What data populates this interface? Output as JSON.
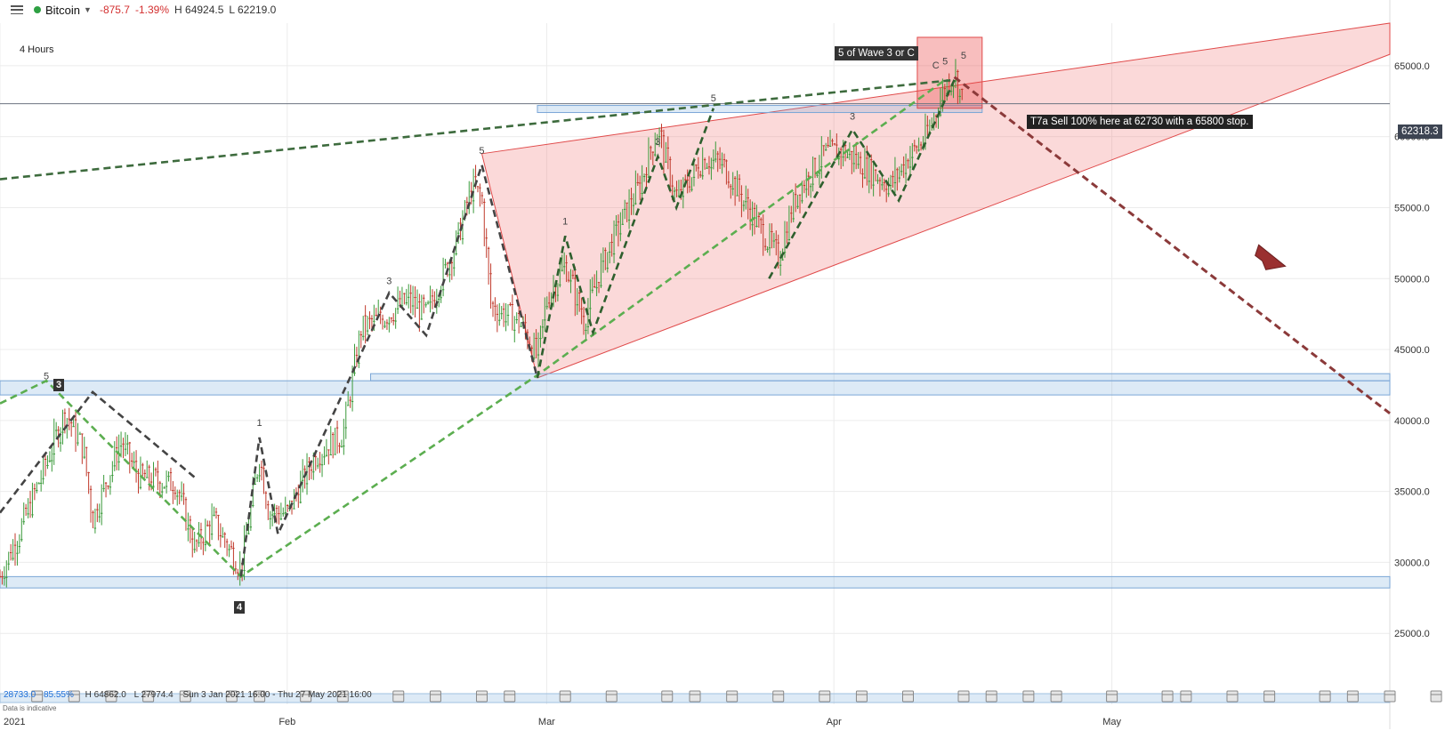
{
  "header": {
    "symbol": "Bitcoin",
    "status_color": "#2ea043",
    "change": "-875.7",
    "change_pct": "-1.39%",
    "high": "H 64924.5",
    "low": "L 62219.0",
    "change_color": "#d32f2f"
  },
  "timeframe_label": "4 Hours",
  "current_price_label": "62318.3",
  "annotations": {
    "wave_box": "5 of Wave 3 or C",
    "trade_callout": "T7a Sell 100% here at 62730 with a 65800 stop.",
    "box_3": "3",
    "box_4": "4"
  },
  "footer": {
    "last_value": "28733.0",
    "pct": "85.55%",
    "range_high": "H 64862.0",
    "range_low": "L 27974.4",
    "date_range": "Sun 3 Jan 2021 16:00 - Thu 27 May 2021 16:00",
    "note": "Data is indicative"
  },
  "chart_data": {
    "type": "candlestick",
    "title": "",
    "ylim": [
      20000,
      68000
    ],
    "xlim": [
      "2021-01-01",
      "2021-05-31"
    ],
    "y_tick_labels": [
      "65000.0",
      "60000.0",
      "55000.0",
      "50000.0",
      "45000.0",
      "40000.0",
      "35000.0",
      "30000.0",
      "25000.0"
    ],
    "y_ticks": [
      65000,
      60000,
      55000,
      50000,
      45000,
      40000,
      35000,
      30000,
      25000
    ],
    "x_tick_labels": [
      "2021",
      "Feb",
      "Mar",
      "Apr",
      "May"
    ],
    "x_ticks": [
      "2021-01-01",
      "2021-02-01",
      "2021-03-01",
      "2021-04-01",
      "2021-05-01"
    ],
    "grid": true,
    "price_path": [
      [
        "2021-01-01",
        29000
      ],
      [
        "2021-01-03",
        32000
      ],
      [
        "2021-01-06",
        37000
      ],
      [
        "2021-01-08",
        40500
      ],
      [
        "2021-01-10",
        38000
      ],
      [
        "2021-01-11",
        33000
      ],
      [
        "2021-01-14",
        38500
      ],
      [
        "2021-01-16",
        36000
      ],
      [
        "2021-01-20",
        35500
      ],
      [
        "2021-01-22",
        31000
      ],
      [
        "2021-01-24",
        33000
      ],
      [
        "2021-01-27",
        29500
      ],
      [
        "2021-01-29",
        37500
      ],
      [
        "2021-01-30",
        33500
      ],
      [
        "2021-02-01",
        33500
      ],
      [
        "2021-02-04",
        37500
      ],
      [
        "2021-02-07",
        39000
      ],
      [
        "2021-02-09",
        46500
      ],
      [
        "2021-02-12",
        47500
      ],
      [
        "2021-02-14",
        48500
      ],
      [
        "2021-02-16",
        47500
      ],
      [
        "2021-02-19",
        52000
      ],
      [
        "2021-02-21",
        56500
      ],
      [
        "2021-02-22",
        55500
      ],
      [
        "2021-02-23",
        48000
      ],
      [
        "2021-02-26",
        47000
      ],
      [
        "2021-02-28",
        44500
      ],
      [
        "2021-03-01",
        48500
      ],
      [
        "2021-03-03",
        51000
      ],
      [
        "2021-03-05",
        47000
      ],
      [
        "2021-03-07",
        51000
      ],
      [
        "2021-03-09",
        54000
      ],
      [
        "2021-03-11",
        56500
      ],
      [
        "2021-03-13",
        60500
      ],
      [
        "2021-03-15",
        55500
      ],
      [
        "2021-03-18",
        58500
      ],
      [
        "2021-03-20",
        58000
      ],
      [
        "2021-03-24",
        53500
      ],
      [
        "2021-03-26",
        51500
      ],
      [
        "2021-03-28",
        56000
      ],
      [
        "2021-03-31",
        58800
      ],
      [
        "2021-04-02",
        59000
      ],
      [
        "2021-04-05",
        57500
      ],
      [
        "2021-04-07",
        56500
      ],
      [
        "2021-04-09",
        58500
      ],
      [
        "2021-04-11",
        60000
      ],
      [
        "2021-04-13",
        63500
      ],
      [
        "2021-04-14",
        64500
      ],
      [
        "2021-04-15",
        62300
      ]
    ],
    "lines": [
      {
        "style": "dashed",
        "color": "#3d6b3d",
        "points": [
          [
            "2021-01-01",
            57000
          ],
          [
            "2021-04-14",
            64000
          ]
        ]
      },
      {
        "style": "dashed",
        "color": "#5cae50",
        "points": [
          [
            "2021-01-01",
            41200
          ],
          [
            "2021-01-06",
            42800
          ],
          [
            "2021-01-27",
            29000
          ],
          [
            "2021-02-28",
            43200
          ],
          [
            "2021-04-13",
            64000
          ]
        ]
      },
      {
        "style": "dashed",
        "color": "#444444",
        "points": [
          [
            "2021-01-01",
            33500
          ],
          [
            "2021-01-11",
            42000
          ],
          [
            "2021-01-22",
            36000
          ]
        ]
      },
      {
        "style": "dashed",
        "color": "#444444",
        "points": [
          [
            "2021-01-27",
            29000
          ],
          [
            "2021-01-29",
            38800
          ],
          [
            "2021-01-31",
            32000
          ],
          [
            "2021-02-12",
            49000
          ],
          [
            "2021-02-16",
            46000
          ],
          [
            "2021-02-22",
            58000
          ],
          [
            "2021-02-28",
            43000
          ]
        ]
      },
      {
        "style": "dashed",
        "color": "#2e5f2e",
        "points": [
          [
            "2021-02-28",
            43000
          ],
          [
            "2021-03-03",
            53000
          ],
          [
            "2021-03-06",
            46200
          ],
          [
            "2021-03-13",
            58600
          ],
          [
            "2021-03-15",
            55000
          ],
          [
            "2021-03-19",
            62000
          ]
        ]
      },
      {
        "style": "dashed",
        "color": "#2e5f2e",
        "points": [
          [
            "2021-03-25",
            50000
          ],
          [
            "2021-04-03",
            60500
          ],
          [
            "2021-04-08",
            55500
          ],
          [
            "2021-04-14",
            64000
          ]
        ]
      },
      {
        "style": "dashed",
        "color": "#8b3a3a",
        "points": [
          [
            "2021-04-14",
            64200
          ],
          [
            "2021-05-31",
            40500
          ]
        ]
      }
    ],
    "wedge": [
      [
        "2021-02-22",
        58800
      ],
      [
        "2021-05-31",
        68000
      ],
      [
        "2021-05-31",
        65800
      ],
      [
        "2021-02-28",
        43000
      ]
    ],
    "zones": [
      {
        "x1": "2021-01-01",
        "x2": "2021-05-31",
        "y1": 41800,
        "y2": 42800
      },
      {
        "x1": "2021-02-10",
        "x2": "2021-05-31",
        "y1": 42800,
        "y2": 43300
      },
      {
        "x1": "2021-01-01",
        "x2": "2021-05-31",
        "y1": 28200,
        "y2": 29000
      },
      {
        "x1": "2021-02-28",
        "x2": "2021-04-17",
        "y1": 61700,
        "y2": 62200
      }
    ],
    "stop_box": {
      "x1": "2021-04-10",
      "x2": "2021-04-17",
      "y1": 62000,
      "y2": 67000
    },
    "current_price": 62318.3,
    "wave_labels": [
      {
        "text": "1",
        "x": "2021-01-29",
        "y": 39600
      },
      {
        "text": "3",
        "x": "2021-02-12",
        "y": 49600
      },
      {
        "text": "5",
        "x": "2021-02-22",
        "y": 58800
      },
      {
        "text": "1",
        "x": "2021-03-03",
        "y": 53800
      },
      {
        "text": "3",
        "x": "2021-03-13",
        "y": 59400
      },
      {
        "text": "5",
        "x": "2021-03-19",
        "y": 62500
      },
      {
        "text": "3",
        "x": "2021-04-03",
        "y": 61200
      },
      {
        "text": "C",
        "x": "2021-04-12",
        "y": 64800
      },
      {
        "text": "5",
        "x": "2021-04-13",
        "y": 65100
      },
      {
        "text": "5",
        "x": "2021-04-15",
        "y": 65500
      },
      {
        "text": "5",
        "x": "2021-01-06",
        "y": 42900
      }
    ]
  }
}
